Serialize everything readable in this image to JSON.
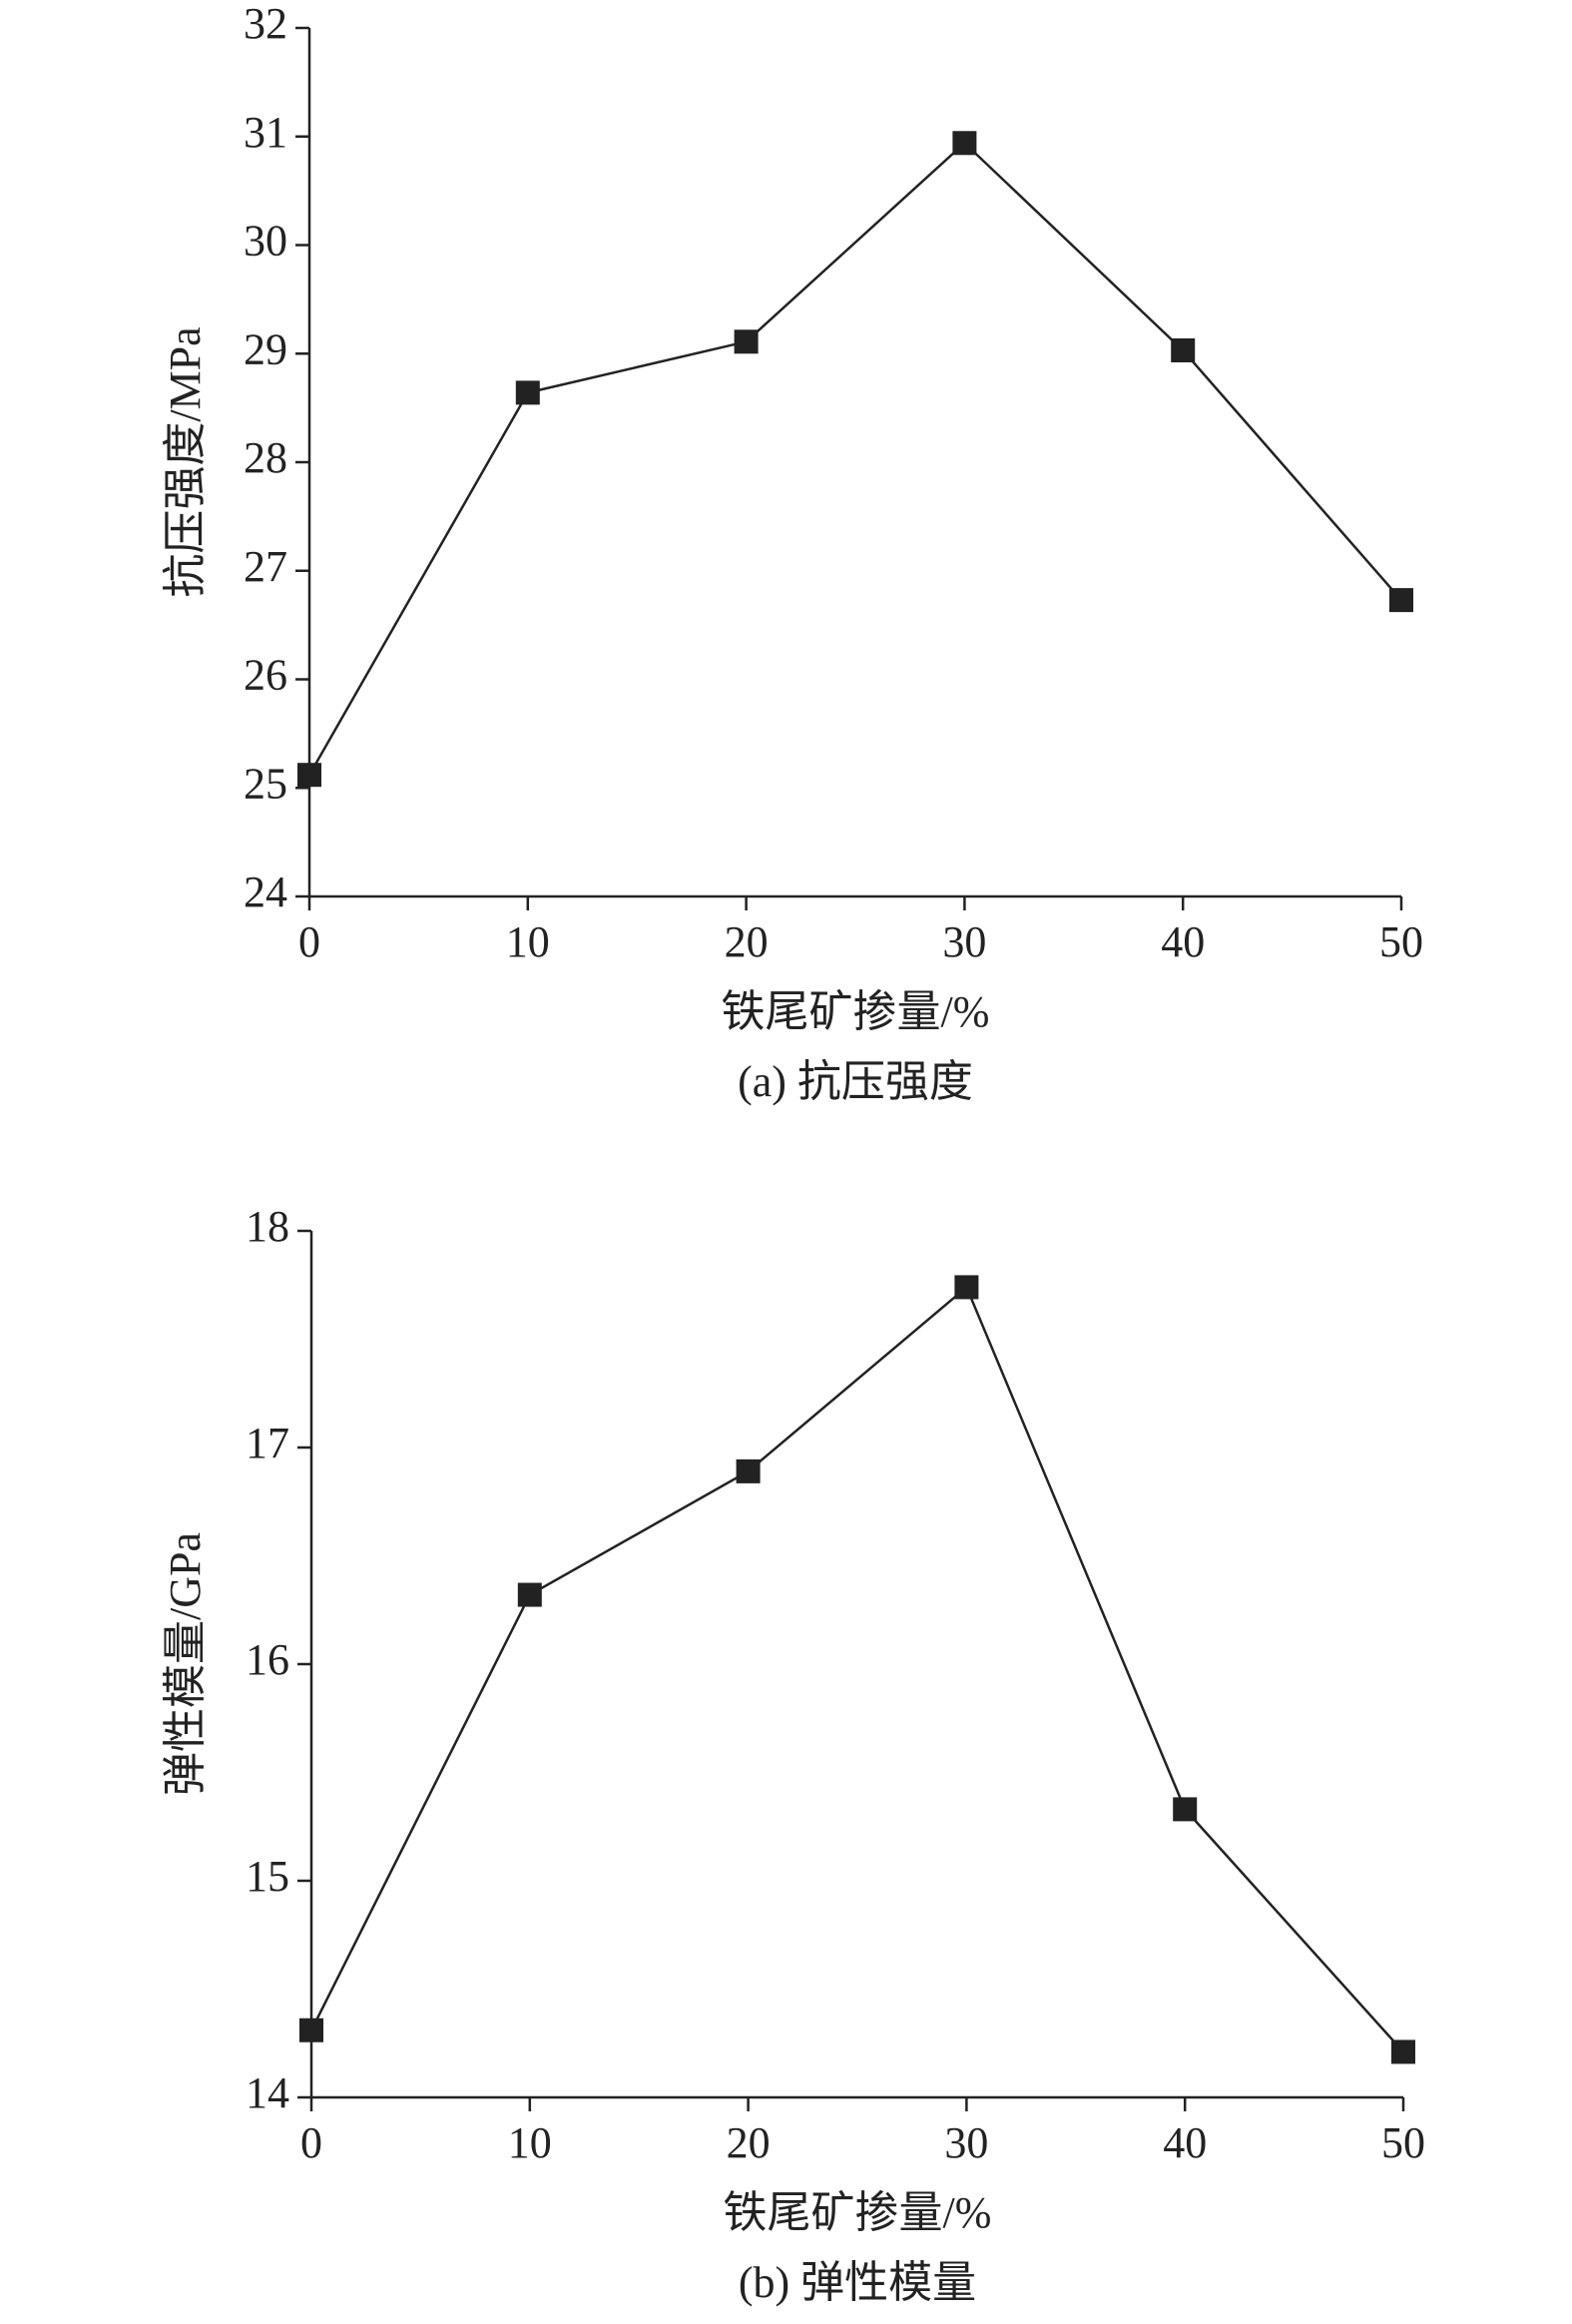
{
  "chart_data": [
    {
      "type": "line",
      "caption": "(a) 抗压强度",
      "x_label": "铁尾矿掺量/%",
      "y_label": "抗压强度/MPa",
      "x": [
        0,
        10,
        20,
        30,
        40,
        50
      ],
      "series": [
        {
          "color": "#222222",
          "values": [
            25.12,
            28.64,
            29.11,
            30.94,
            29.03,
            26.73
          ]
        }
      ],
      "xlim": [
        0,
        50
      ],
      "xticks": [
        0,
        10,
        20,
        30,
        40,
        50
      ],
      "ylim": [
        24,
        32
      ],
      "yticks": [
        24,
        25,
        26,
        27,
        28,
        29,
        30,
        31,
        32
      ]
    },
    {
      "type": "line",
      "caption": "(b) 弹性模量",
      "x_label": "铁尾矿掺量/%",
      "y_label": "弹性模量/GPa",
      "x": [
        0,
        10,
        20,
        30,
        40,
        50
      ],
      "series": [
        {
          "color": "#222222",
          "values": [
            14.31,
            16.32,
            16.89,
            17.74,
            15.33,
            14.21
          ]
        }
      ],
      "xlim": [
        0,
        50
      ],
      "xticks": [
        0,
        10,
        20,
        30,
        40,
        50
      ],
      "ylim": [
        14,
        18
      ],
      "yticks": [
        14,
        15,
        16,
        17,
        18
      ]
    }
  ]
}
